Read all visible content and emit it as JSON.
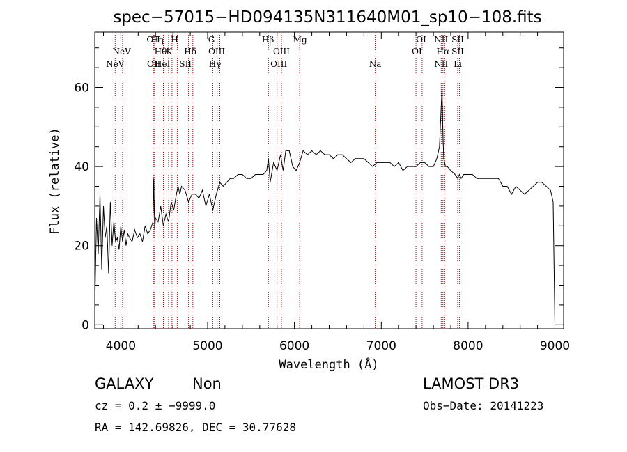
{
  "chart_data": {
    "type": "line",
    "title": "spec−57015−HD094135N311640M01_sp10−108.fits",
    "xlabel": "Wavelength (Å)",
    "ylabel": "Flux (relative)",
    "xlim": [
      3700,
      9100
    ],
    "ylim": [
      -1,
      74
    ],
    "xticks": [
      4000,
      5000,
      6000,
      7000,
      8000,
      9000
    ],
    "yticks": [
      0,
      20,
      40,
      60
    ],
    "grid": false,
    "line_color": "#000000",
    "marker_color": "#cc0000",
    "series": [
      {
        "x": [
          3700,
          3720,
          3740,
          3760,
          3780,
          3800,
          3820,
          3840,
          3860,
          3880,
          3900,
          3920,
          3940,
          3960,
          3980,
          4000,
          4020,
          4040,
          4060,
          4080,
          4100,
          4130,
          4160,
          4190,
          4220,
          4250,
          4280,
          4310,
          4340,
          4370,
          4380,
          4390,
          4400,
          4430,
          4460,
          4490,
          4520,
          4550,
          4580,
          4610,
          4640,
          4660,
          4680,
          4700,
          4740,
          4780,
          4820,
          4860,
          4900,
          4940,
          4980,
          5020,
          5060,
          5100,
          5140,
          5180,
          5220,
          5260,
          5300,
          5350,
          5400,
          5450,
          5500,
          5550,
          5600,
          5640,
          5680,
          5700,
          5720,
          5760,
          5800,
          5840,
          5870,
          5900,
          5940,
          5980,
          6020,
          6060,
          6100,
          6150,
          6200,
          6250,
          6300,
          6350,
          6400,
          6450,
          6500,
          6550,
          6600,
          6650,
          6700,
          6750,
          6800,
          6850,
          6900,
          6950,
          7000,
          7050,
          7100,
          7150,
          7200,
          7250,
          7300,
          7350,
          7400,
          7450,
          7500,
          7550,
          7600,
          7640,
          7670,
          7690,
          7700,
          7710,
          7720,
          7740,
          7760,
          7800,
          7850,
          7880,
          7900,
          7920,
          7950,
          8000,
          8050,
          8100,
          8150,
          8200,
          8250,
          8300,
          8350,
          8400,
          8450,
          8500,
          8550,
          8600,
          8650,
          8700,
          8750,
          8800,
          8850,
          8900,
          8950,
          8980,
          9000
        ],
        "values": [
          4,
          27,
          18,
          33,
          14,
          30,
          22,
          25,
          13,
          31,
          20,
          26,
          21,
          22,
          19,
          25,
          21,
          24,
          20,
          23,
          22,
          21,
          24,
          22,
          23,
          21,
          25,
          23,
          24,
          26,
          37,
          24,
          27,
          26,
          30,
          25,
          28,
          26,
          31,
          29,
          33,
          35,
          33,
          35,
          34,
          31,
          33,
          33,
          32,
          34,
          30,
          33,
          29,
          33,
          36,
          35,
          36,
          37,
          37,
          38,
          38,
          37,
          37,
          38,
          38,
          38,
          39,
          42,
          36,
          41,
          39,
          43,
          39,
          44,
          44,
          40,
          39,
          41,
          44,
          43,
          44,
          43,
          44,
          43,
          43,
          42,
          43,
          43,
          42,
          41,
          42,
          42,
          42,
          41,
          40,
          41,
          41,
          41,
          41,
          40,
          41,
          39,
          40,
          40,
          40,
          41,
          41,
          40,
          40,
          42,
          45,
          55,
          60,
          48,
          42,
          40,
          40,
          39,
          38,
          37,
          38,
          37,
          38,
          38,
          38,
          37,
          37,
          37,
          37,
          37,
          37,
          35,
          35,
          33,
          35,
          34,
          33,
          34,
          35,
          36,
          36,
          35,
          34,
          31,
          0
        ]
      }
    ],
    "annotations": [
      {
        "label": "NeV",
        "x": 3935,
        "row": 2
      },
      {
        "label": "NeV",
        "x": 4010,
        "row": 1
      },
      {
        "label": "OII",
        "x": 4375,
        "row": 0
      },
      {
        "label": "OII",
        "x": 4380,
        "row": 2
      },
      {
        "label": "Hη",
        "x": 4420,
        "row": 0
      },
      {
        "label": "Hθ",
        "x": 4458,
        "row": 1
      },
      {
        "label": "HeI",
        "x": 4480,
        "row": 2
      },
      {
        "label": "K",
        "x": 4558,
        "row": 1
      },
      {
        "label": "H",
        "x": 4620,
        "row": 0
      },
      {
        "label": "SII",
        "x": 4745,
        "row": 2
      },
      {
        "label": "Hδ",
        "x": 4800,
        "row": 1
      },
      {
        "label": "G",
        "x": 5044,
        "row": 0
      },
      {
        "label": "OIII",
        "x": 5105,
        "row": 1
      },
      {
        "label": "Hγ",
        "x": 5085,
        "row": 2
      },
      {
        "label": "Hβ",
        "x": 5695,
        "row": 0
      },
      {
        "label": "OIII",
        "x": 5850,
        "row": 1
      },
      {
        "label": "OIII",
        "x": 5820,
        "row": 2
      },
      {
        "label": "Mg",
        "x": 6065,
        "row": 0
      },
      {
        "label": "Na",
        "x": 6930,
        "row": 2
      },
      {
        "label": "OI",
        "x": 7460,
        "row": 0
      },
      {
        "label": "OI",
        "x": 7410,
        "row": 1
      },
      {
        "label": "NII",
        "x": 7690,
        "row": 0
      },
      {
        "label": "Hα",
        "x": 7710,
        "row": 1
      },
      {
        "label": "NII",
        "x": 7690,
        "row": 2
      },
      {
        "label": "SII",
        "x": 7880,
        "row": 0
      },
      {
        "label": "SII",
        "x": 7880,
        "row": 1
      },
      {
        "label": "Li",
        "x": 7880,
        "row": 2
      }
    ],
    "marker_x": [
      3935,
      4020,
      4380,
      4390,
      4450,
      4490,
      4550,
      4590,
      4650,
      4780,
      4830,
      5060,
      5110,
      5140,
      5700,
      5800,
      5850,
      6060,
      6930,
      7400,
      7470,
      7690,
      7710,
      7730,
      7880,
      7900
    ]
  },
  "footer": {
    "class_label": "GALAXY",
    "subclass_label": "Non",
    "survey_label": "LAMOST DR3",
    "cz_text": "cz = 0.2 ± −9999.0",
    "obsdate_text": "Obs−Date: 20141223",
    "radec_text": "RA = 142.69826, DEC =  30.77628"
  }
}
